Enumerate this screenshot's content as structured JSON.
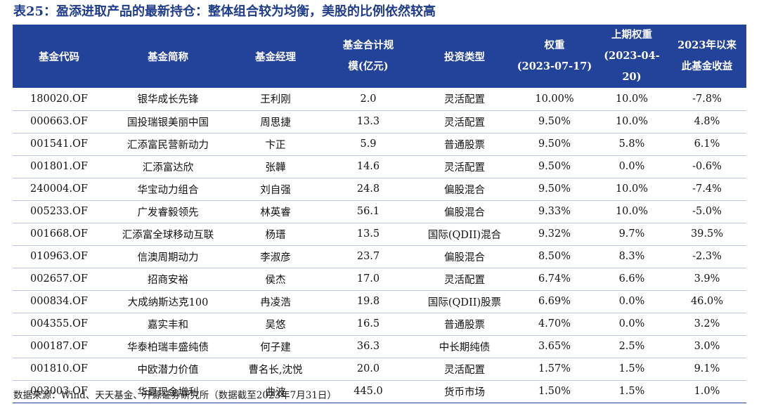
{
  "title": "表25：盈添进取产品的最新持仓：整体组合较为均衡，美股的比例依然较高",
  "headers": {
    "code": "基金代码",
    "name": "基金简称",
    "manager": "基金经理",
    "size_line1": "基金合计规",
    "size_line2": "模(亿元)",
    "type": "投资类型",
    "weight_line1": "权重",
    "weight_line2": "(2023-07-17)",
    "prev_weight_line1": "上期权重",
    "prev_weight_line2": "(2023-04-20)",
    "return_line1": "2023年以来",
    "return_line2": "此基金收益"
  },
  "rows": [
    {
      "code": "180020.OF",
      "name": "银华成长先锋",
      "manager": "王利刚",
      "size": "2.0",
      "type": "灵活配置",
      "weight": "10.00%",
      "prev_weight": "10.0%",
      "return": "-7.8%"
    },
    {
      "code": "000663.OF",
      "name": "国投瑞银美丽中国",
      "manager": "周思捷",
      "size": "13.3",
      "type": "灵活配置",
      "weight": "9.50%",
      "prev_weight": "10.0%",
      "return": "4.8%"
    },
    {
      "code": "001541.OF",
      "name": "汇添富民营新动力",
      "manager": "卞正",
      "size": "5.9",
      "type": "普通股票",
      "weight": "9.50%",
      "prev_weight": "5.8%",
      "return": "6.1%"
    },
    {
      "code": "001801.OF",
      "name": "汇添富达欣",
      "manager": "张韡",
      "size": "14.6",
      "type": "灵活配置",
      "weight": "9.50%",
      "prev_weight": "0.0%",
      "return": "-0.6%"
    },
    {
      "code": "240004.OF",
      "name": "华宝动力组合",
      "manager": "刘自强",
      "size": "24.8",
      "type": "偏股混合",
      "weight": "9.50%",
      "prev_weight": "10.0%",
      "return": "-7.4%"
    },
    {
      "code": "005233.OF",
      "name": "广发睿毅领先",
      "manager": "林英睿",
      "size": "56.1",
      "type": "偏股混合",
      "weight": "9.33%",
      "prev_weight": "10.0%",
      "return": "-5.0%"
    },
    {
      "code": "001668.OF",
      "name": "汇添富全球移动互联",
      "manager": "杨瑨",
      "size": "13.5",
      "type": "国际(QDII)混合",
      "weight": "9.32%",
      "prev_weight": "9.7%",
      "return": "39.5%"
    },
    {
      "code": "010963.OF",
      "name": "信澳周期动力",
      "manager": "李淑彦",
      "size": "23.7",
      "type": "偏股混合",
      "weight": "8.50%",
      "prev_weight": "8.3%",
      "return": "-2.3%"
    },
    {
      "code": "002657.OF",
      "name": "招商安裕",
      "manager": "侯杰",
      "size": "17.0",
      "type": "灵活配置",
      "weight": "6.74%",
      "prev_weight": "6.6%",
      "return": "3.9%"
    },
    {
      "code": "000834.OF",
      "name": "大成纳斯达克100",
      "manager": "冉凌浩",
      "size": "19.8",
      "type": "国际(QDII)股票",
      "weight": "6.69%",
      "prev_weight": "0.0%",
      "return": "46.0%"
    },
    {
      "code": "004355.OF",
      "name": "嘉实丰和",
      "manager": "吴悠",
      "size": "16.5",
      "type": "普通股票",
      "weight": "4.70%",
      "prev_weight": "0.0%",
      "return": "3.2%"
    },
    {
      "code": "000187.OF",
      "name": "华泰柏瑞丰盛纯债",
      "manager": "何子建",
      "size": "36.3",
      "type": "中长期纯债",
      "weight": "3.65%",
      "prev_weight": "2.5%",
      "return": "3.0%"
    },
    {
      "code": "001810.OF",
      "name": "中欧潜力价值",
      "manager": "曹名长,沈悦",
      "size": "20.0",
      "type": "灵活配置",
      "weight": "1.57%",
      "prev_weight": "1.5%",
      "return": "9.1%"
    },
    {
      "code": "003003.OF",
      "name": "华夏现金增利",
      "manager": "曲波",
      "size": "445.0",
      "type": "货币市场",
      "weight": "1.50%",
      "prev_weight": "1.5%",
      "return": "1.0%"
    }
  ],
  "footer": "数据来源：Wind、天天基金、开源证券研究所（数据截至2023年7月31日）"
}
